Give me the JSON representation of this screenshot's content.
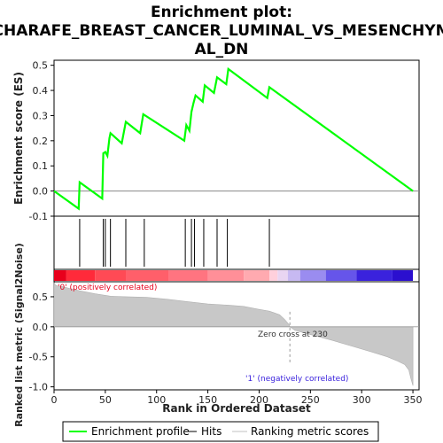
{
  "title_line1": "Enrichment plot:",
  "title_line2": "CHARAFE_BREAST_CANCER_LUMINAL_VS_MESENCHYM",
  "title_line3": "AL_DN",
  "chart_data": [
    {
      "type": "line",
      "panel": "enrichment",
      "ylabel": "Enrichment score (ES)",
      "xlim": [
        0,
        356
      ],
      "ylim": [
        -0.1,
        0.52
      ],
      "yticks": [
        "0.5",
        "0.4",
        "0.3",
        "0.2",
        "0.1",
        "0.0",
        "-0.1"
      ],
      "ytick_values": [
        0.5,
        0.4,
        0.3,
        0.2,
        0.1,
        0.0,
        -0.1
      ],
      "color": "#00ff00",
      "series": [
        {
          "name": "Enrichment profile",
          "x": [
            0,
            24,
            25,
            47,
            48,
            50,
            52,
            54,
            55,
            66,
            70,
            84,
            87,
            127,
            129,
            132,
            134,
            136,
            138,
            145,
            147,
            156,
            159,
            168,
            170,
            208,
            210,
            350
          ],
          "values": [
            0.0,
            -0.07,
            0.035,
            -0.03,
            0.15,
            0.155,
            0.14,
            0.21,
            0.23,
            0.19,
            0.275,
            0.23,
            0.305,
            0.2,
            0.262,
            0.24,
            0.315,
            0.35,
            0.38,
            0.355,
            0.42,
            0.39,
            0.452,
            0.425,
            0.485,
            0.37,
            0.413,
            0.0
          ]
        }
      ]
    },
    {
      "type": "scatter",
      "panel": "hits",
      "series": [
        {
          "name": "Hits",
          "x": [
            25,
            48,
            50,
            55,
            70,
            88,
            128,
            134,
            137,
            146,
            159,
            169,
            210
          ]
        }
      ]
    },
    {
      "type": "heatmap",
      "panel": "rank-color-bar",
      "colors": [
        "#e8001c",
        "#ff2a3a",
        "#ff4a55",
        "#ff5f6a",
        "#ff7480",
        "#ff8f98",
        "#ffaab0",
        "#ffd0dc",
        "#e9d5f2",
        "#c7b9f2",
        "#9a8cf0",
        "#6655ea",
        "#3a22dd",
        "#2b0fcf"
      ],
      "segment_ends": [
        12,
        40,
        70,
        112,
        150,
        185,
        210,
        218,
        228,
        240,
        265,
        295,
        330,
        350
      ]
    },
    {
      "type": "area",
      "panel": "ranked-metric",
      "xlabel": "Rank in Ordered Dataset",
      "ylabel": "Ranked list metric (Signal2Noise)",
      "xlim": [
        0,
        356
      ],
      "ylim": [
        -1.05,
        0.75
      ],
      "xticks": [
        "0",
        "50",
        "100",
        "150",
        "200",
        "250",
        "300",
        "350"
      ],
      "xtick_values": [
        0,
        50,
        100,
        150,
        200,
        250,
        300,
        350
      ],
      "yticks": [
        "0.5",
        "0.0",
        "-0.5",
        "-1.0"
      ],
      "ytick_values": [
        0.5,
        0.0,
        -0.5,
        -1.0
      ],
      "series": [
        {
          "name": "Ranking metric scores",
          "x": [
            0,
            1,
            3,
            8,
            15,
            25,
            40,
            55,
            70,
            90,
            110,
            130,
            150,
            170,
            185,
            200,
            210,
            215,
            220,
            225,
            229,
            230,
            235,
            250,
            270,
            290,
            310,
            325,
            335,
            342,
            346,
            348,
            350
          ],
          "values": [
            0.73,
            0.7,
            0.68,
            0.67,
            0.64,
            0.6,
            0.55,
            0.51,
            0.5,
            0.49,
            0.46,
            0.42,
            0.38,
            0.36,
            0.34,
            0.29,
            0.26,
            0.23,
            0.2,
            0.12,
            0.04,
            0.0,
            -0.06,
            -0.13,
            -0.22,
            -0.32,
            -0.42,
            -0.5,
            -0.57,
            -0.63,
            -0.72,
            -0.86,
            -0.98
          ]
        }
      ]
    }
  ],
  "annotations": {
    "positive": "'0' (positively correlated)",
    "negative": "'1' (negatively correlated)",
    "zero_cross": "Zero cross at 230"
  },
  "legend": {
    "profile": "Enrichment profile",
    "hits": "Hits",
    "metric": "Ranking metric scores"
  }
}
